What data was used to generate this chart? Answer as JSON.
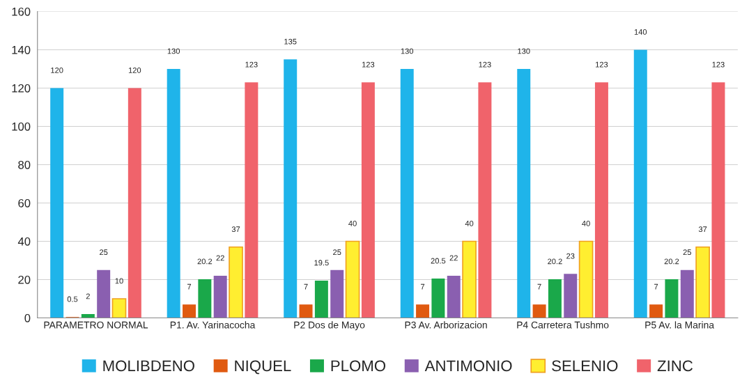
{
  "chart_data": {
    "type": "bar",
    "categories": [
      "PARAMETRO NORMAL",
      "P1. Av. Yarinacocha",
      "P2 Dos de Mayo",
      "P3 Av. Arborizacion",
      "P4 Carretera Tushmo",
      "P5 Av. la Marina"
    ],
    "series": [
      {
        "name": "MOLIBDENO",
        "color": "#1fb4ea",
        "values": [
          120,
          130,
          135,
          130,
          130,
          140
        ]
      },
      {
        "name": "NIQUEL",
        "color": "#e05a10",
        "values": [
          0.5,
          7,
          7,
          7,
          7,
          7
        ]
      },
      {
        "name": "PLOMO",
        "color": "#1aa84a",
        "values": [
          2,
          20.2,
          19.5,
          20.5,
          20.2,
          20.2
        ]
      },
      {
        "name": "ANTIMONIO",
        "color": "#8a5fb0",
        "values": [
          25,
          22,
          25,
          22,
          23,
          25
        ]
      },
      {
        "name": "SELENIO",
        "color": "#ffee30",
        "values": [
          10,
          37,
          40,
          40,
          40,
          37
        ]
      },
      {
        "name": "ZINC",
        "color": "#f0636b",
        "values": [
          120,
          123,
          123,
          123,
          123,
          123
        ]
      }
    ],
    "ylim": [
      0,
      160
    ],
    "yticks": [
      0,
      20,
      40,
      60,
      80,
      100,
      120,
      140,
      160
    ],
    "grid": "y",
    "legend": "bottom",
    "data_labels": true
  }
}
